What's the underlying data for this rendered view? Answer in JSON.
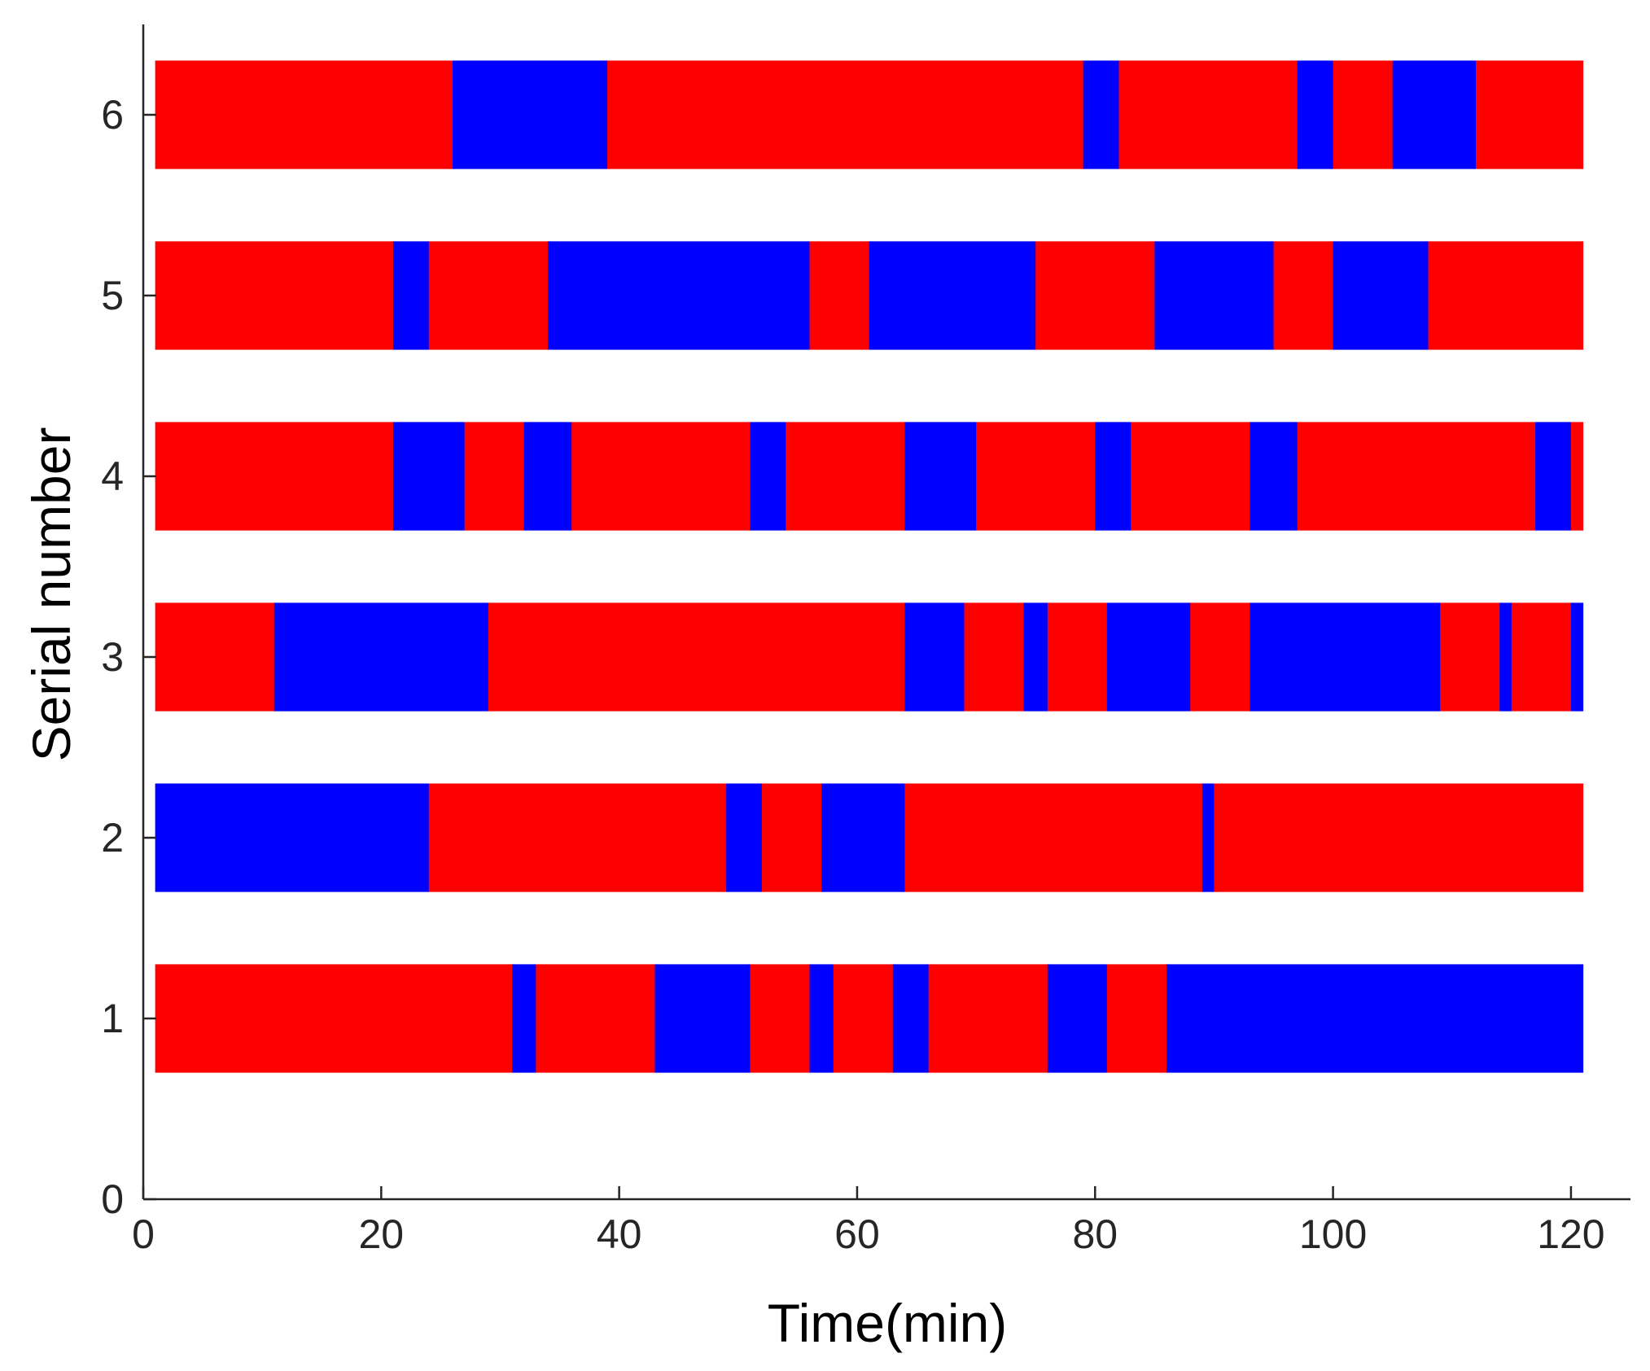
{
  "chart_data": {
    "type": "bar",
    "orientation": "horizontal-timeline",
    "title": "",
    "xlabel": "Time(min)",
    "ylabel": "Serial number",
    "xlim": [
      0,
      125
    ],
    "ylim": [
      0,
      6.5
    ],
    "x_ticks": [
      0,
      20,
      40,
      60,
      80,
      100,
      120
    ],
    "y_ticks": [
      0,
      1,
      2,
      3,
      4,
      5,
      6
    ],
    "grid": false,
    "colors": {
      "red": "#ff0000",
      "blue": "#0000ff",
      "axis": "#262626"
    },
    "series": [
      {
        "serial": 1,
        "start": 1,
        "segments": [
          {
            "end": 31,
            "color": "red"
          },
          {
            "end": 33,
            "color": "blue"
          },
          {
            "end": 43,
            "color": "red"
          },
          {
            "end": 51,
            "color": "blue"
          },
          {
            "end": 56,
            "color": "red"
          },
          {
            "end": 58,
            "color": "blue"
          },
          {
            "end": 63,
            "color": "red"
          },
          {
            "end": 66,
            "color": "blue"
          },
          {
            "end": 76,
            "color": "red"
          },
          {
            "end": 81,
            "color": "blue"
          },
          {
            "end": 86,
            "color": "red"
          },
          {
            "end": 121,
            "color": "blue"
          }
        ]
      },
      {
        "serial": 2,
        "start": 1,
        "segments": [
          {
            "end": 24,
            "color": "blue"
          },
          {
            "end": 49,
            "color": "red"
          },
          {
            "end": 52,
            "color": "blue"
          },
          {
            "end": 57,
            "color": "red"
          },
          {
            "end": 64,
            "color": "blue"
          },
          {
            "end": 89,
            "color": "red"
          },
          {
            "end": 90,
            "color": "blue"
          },
          {
            "end": 121,
            "color": "red"
          }
        ]
      },
      {
        "serial": 3,
        "start": 1,
        "segments": [
          {
            "end": 11,
            "color": "red"
          },
          {
            "end": 29,
            "color": "blue"
          },
          {
            "end": 64,
            "color": "red"
          },
          {
            "end": 69,
            "color": "blue"
          },
          {
            "end": 74,
            "color": "red"
          },
          {
            "end": 76,
            "color": "blue"
          },
          {
            "end": 81,
            "color": "red"
          },
          {
            "end": 88,
            "color": "blue"
          },
          {
            "end": 93,
            "color": "red"
          },
          {
            "end": 109,
            "color": "blue"
          },
          {
            "end": 114,
            "color": "red"
          },
          {
            "end": 115,
            "color": "blue"
          },
          {
            "end": 120,
            "color": "red"
          },
          {
            "end": 121,
            "color": "blue"
          }
        ]
      },
      {
        "serial": 4,
        "start": 1,
        "segments": [
          {
            "end": 21,
            "color": "red"
          },
          {
            "end": 27,
            "color": "blue"
          },
          {
            "end": 32,
            "color": "red"
          },
          {
            "end": 36,
            "color": "blue"
          },
          {
            "end": 51,
            "color": "red"
          },
          {
            "end": 54,
            "color": "blue"
          },
          {
            "end": 64,
            "color": "red"
          },
          {
            "end": 70,
            "color": "blue"
          },
          {
            "end": 80,
            "color": "red"
          },
          {
            "end": 83,
            "color": "blue"
          },
          {
            "end": 93,
            "color": "red"
          },
          {
            "end": 97,
            "color": "blue"
          },
          {
            "end": 117,
            "color": "red"
          },
          {
            "end": 120,
            "color": "blue"
          },
          {
            "end": 121,
            "color": "red"
          }
        ]
      },
      {
        "serial": 5,
        "start": 1,
        "segments": [
          {
            "end": 21,
            "color": "red"
          },
          {
            "end": 24,
            "color": "blue"
          },
          {
            "end": 34,
            "color": "red"
          },
          {
            "end": 56,
            "color": "blue"
          },
          {
            "end": 61,
            "color": "red"
          },
          {
            "end": 75,
            "color": "blue"
          },
          {
            "end": 85,
            "color": "red"
          },
          {
            "end": 95,
            "color": "blue"
          },
          {
            "end": 100,
            "color": "red"
          },
          {
            "end": 108,
            "color": "blue"
          },
          {
            "end": 121,
            "color": "red"
          }
        ]
      },
      {
        "serial": 6,
        "start": 1,
        "segments": [
          {
            "end": 26,
            "color": "red"
          },
          {
            "end": 39,
            "color": "blue"
          },
          {
            "end": 79,
            "color": "red"
          },
          {
            "end": 82,
            "color": "blue"
          },
          {
            "end": 97,
            "color": "red"
          },
          {
            "end": 100,
            "color": "blue"
          },
          {
            "end": 105,
            "color": "red"
          },
          {
            "end": 112,
            "color": "blue"
          },
          {
            "end": 121,
            "color": "red"
          }
        ]
      }
    ],
    "bar_height": 0.6
  }
}
